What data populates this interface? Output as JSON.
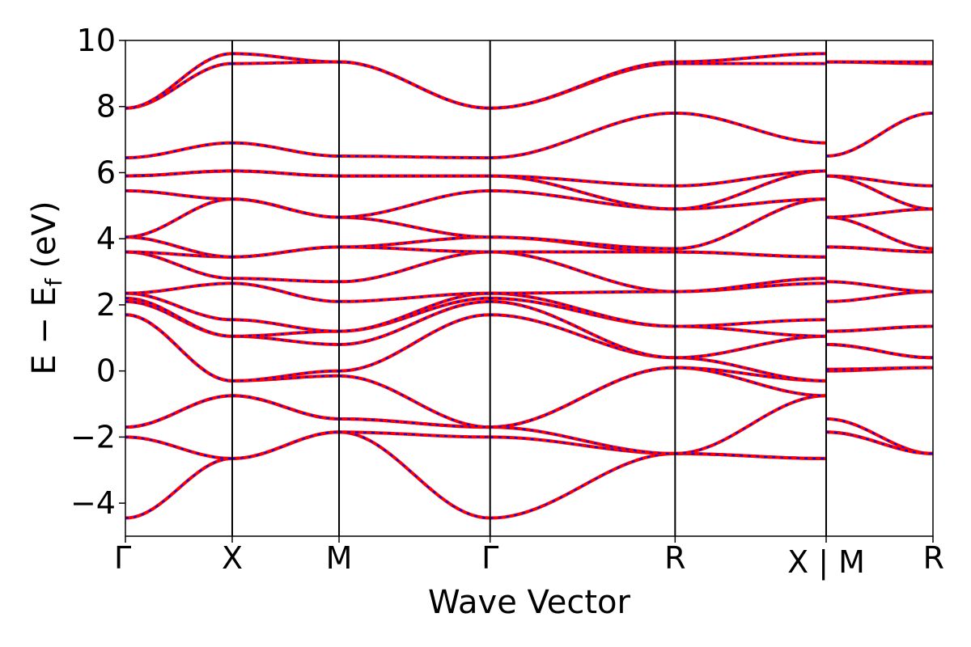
{
  "chart_data": {
    "type": "line",
    "xlabel": "Wave Vector",
    "ylabel_parts": [
      "E − E",
      "f",
      " (eV)"
    ],
    "ylim": [
      -5,
      10
    ],
    "yticks": [
      -4,
      -2,
      0,
      2,
      4,
      6,
      8,
      10
    ],
    "ytick_labels": [
      "−4",
      "−2",
      "0",
      "2",
      "4",
      "6",
      "8",
      "10"
    ],
    "kpoints": [
      {
        "label": "Γ",
        "k": 0
      },
      {
        "label": "X",
        "k": 0.5
      },
      {
        "label": "M",
        "k": 1.0
      },
      {
        "label": "Γ",
        "k": 1.707
      },
      {
        "label": "R",
        "k": 2.573
      },
      {
        "label": "X | M",
        "k": 3.28
      },
      {
        "label": "R",
        "k": 3.78
      }
    ],
    "grid": false,
    "colors": {
      "band_a": "#ff0000",
      "band_b": "#0000ff",
      "axis": "#000000"
    },
    "series": [
      {
        "values": [
          -4.45,
          -2.65,
          -1.85,
          -4.45,
          -2.5,
          -2.65,
          -1.45,
          -2.5
        ]
      },
      {
        "values": [
          -2.0,
          -2.65,
          -1.85,
          -2.0,
          -2.5,
          -2.65,
          -1.85,
          -2.5
        ]
      },
      {
        "values": [
          -1.7,
          -0.75,
          -1.45,
          -1.7,
          -2.5,
          -0.75,
          -1.85,
          -2.5
        ]
      },
      {
        "values": [
          -1.7,
          -0.75,
          -1.45,
          -1.7,
          0.1,
          -0.75,
          0.0,
          0.1
        ]
      },
      {
        "values": [
          1.7,
          -0.3,
          -0.15,
          -1.7,
          0.1,
          -0.3,
          0.05,
          0.1
        ]
      },
      {
        "values": [
          1.7,
          -0.3,
          0.0,
          1.7,
          0.4,
          -0.3,
          0.8,
          0.4
        ]
      },
      {
        "values": [
          2.1,
          1.05,
          0.8,
          2.1,
          0.4,
          1.05,
          0.8,
          0.4
        ]
      },
      {
        "values": [
          2.2,
          1.05,
          1.2,
          2.2,
          1.35,
          1.05,
          1.2,
          1.35
        ]
      },
      {
        "values": [
          2.35,
          1.55,
          1.2,
          2.35,
          1.35,
          1.55,
          1.2,
          1.35
        ]
      },
      {
        "values": [
          2.35,
          2.65,
          2.1,
          2.35,
          2.4,
          2.65,
          2.1,
          2.4
        ]
      },
      {
        "values": [
          3.6,
          2.8,
          2.7,
          3.6,
          2.4,
          2.8,
          2.7,
          2.4
        ]
      },
      {
        "values": [
          3.6,
          3.45,
          3.75,
          3.6,
          3.6,
          3.45,
          3.75,
          3.6
        ]
      },
      {
        "values": [
          4.05,
          3.45,
          3.75,
          4.05,
          3.6,
          3.45,
          3.75,
          3.6
        ]
      },
      {
        "values": [
          4.05,
          5.2,
          4.65,
          4.05,
          3.7,
          5.2,
          4.65,
          3.7
        ]
      },
      {
        "values": [
          5.45,
          5.2,
          4.65,
          5.45,
          4.9,
          5.2,
          4.65,
          4.9
        ]
      },
      {
        "values": [
          5.9,
          6.05,
          5.9,
          5.9,
          4.9,
          6.05,
          5.9,
          4.9
        ]
      },
      {
        "values": [
          5.9,
          6.05,
          5.9,
          5.9,
          5.6,
          6.05,
          5.9,
          5.6
        ]
      },
      {
        "values": [
          6.45,
          6.9,
          6.5,
          6.45,
          7.8,
          6.9,
          6.5,
          7.8
        ]
      },
      {
        "values": [
          7.95,
          9.3,
          9.35,
          7.95,
          9.3,
          9.3,
          9.35,
          9.3
        ]
      },
      {
        "values": [
          7.95,
          9.6,
          9.35,
          7.95,
          9.35,
          9.6,
          9.35,
          9.35
        ]
      }
    ]
  }
}
